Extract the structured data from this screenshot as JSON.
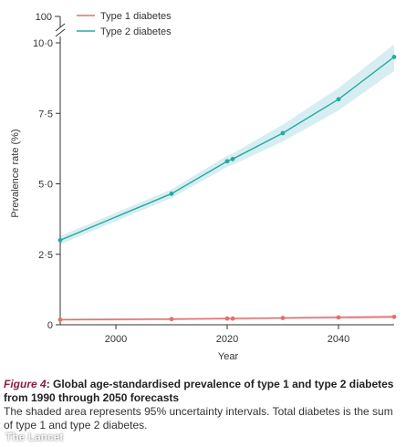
{
  "chart_data": {
    "type": "line",
    "title": "",
    "xlabel": "Year",
    "ylabel": "Prevalence rate (%)",
    "xlim": [
      1990,
      2050
    ],
    "ylim": [
      0,
      10
    ],
    "y_break_label": "100",
    "x_ticks": [
      {
        "value": 2000,
        "label": "2000"
      },
      {
        "value": 2020,
        "label": "2020"
      },
      {
        "value": 2040,
        "label": "2040"
      }
    ],
    "y_ticks": [
      {
        "value": 0,
        "label": "0"
      },
      {
        "value": 2.5,
        "label": "2·5"
      },
      {
        "value": 5,
        "label": "5·0"
      },
      {
        "value": 7.5,
        "label": "7·5"
      },
      {
        "value": 10,
        "label": "10·0"
      }
    ],
    "legend_position": "top-left",
    "grid": false,
    "series": [
      {
        "name": "Type 1 diabetes",
        "color": "#e07070",
        "band_color": "#f6d6d6",
        "x": [
          1990,
          2010,
          2020,
          2021,
          2030,
          2040,
          2050
        ],
        "values": [
          0.18,
          0.2,
          0.22,
          0.22,
          0.24,
          0.26,
          0.28
        ],
        "lower": [
          0.14,
          0.16,
          0.18,
          0.18,
          0.2,
          0.21,
          0.22
        ],
        "upper": [
          0.22,
          0.24,
          0.26,
          0.26,
          0.28,
          0.31,
          0.34
        ]
      },
      {
        "name": "Type 2 diabetes",
        "color": "#2aa8a0",
        "band_color": "#d6eef2",
        "x": [
          1990,
          2010,
          2020,
          2021,
          2030,
          2040,
          2050
        ],
        "values": [
          3.0,
          4.65,
          5.8,
          5.88,
          6.8,
          8.0,
          9.5
        ],
        "lower": [
          2.85,
          4.5,
          5.6,
          5.68,
          6.5,
          7.6,
          9.0
        ],
        "upper": [
          3.15,
          4.8,
          6.0,
          6.08,
          7.1,
          8.4,
          9.95
        ]
      }
    ]
  },
  "caption": {
    "figure_label": "Figure 4",
    "title_rest": ": Global age-standardised prevalence of type 1 and type 2 diabetes from 1990 through 2050 forecasts",
    "note": "The shaded area represents 95% uncertainty intervals. Total diabetes is the sum of type 1 and type 2 diabetes."
  },
  "watermark": "The Lancet"
}
